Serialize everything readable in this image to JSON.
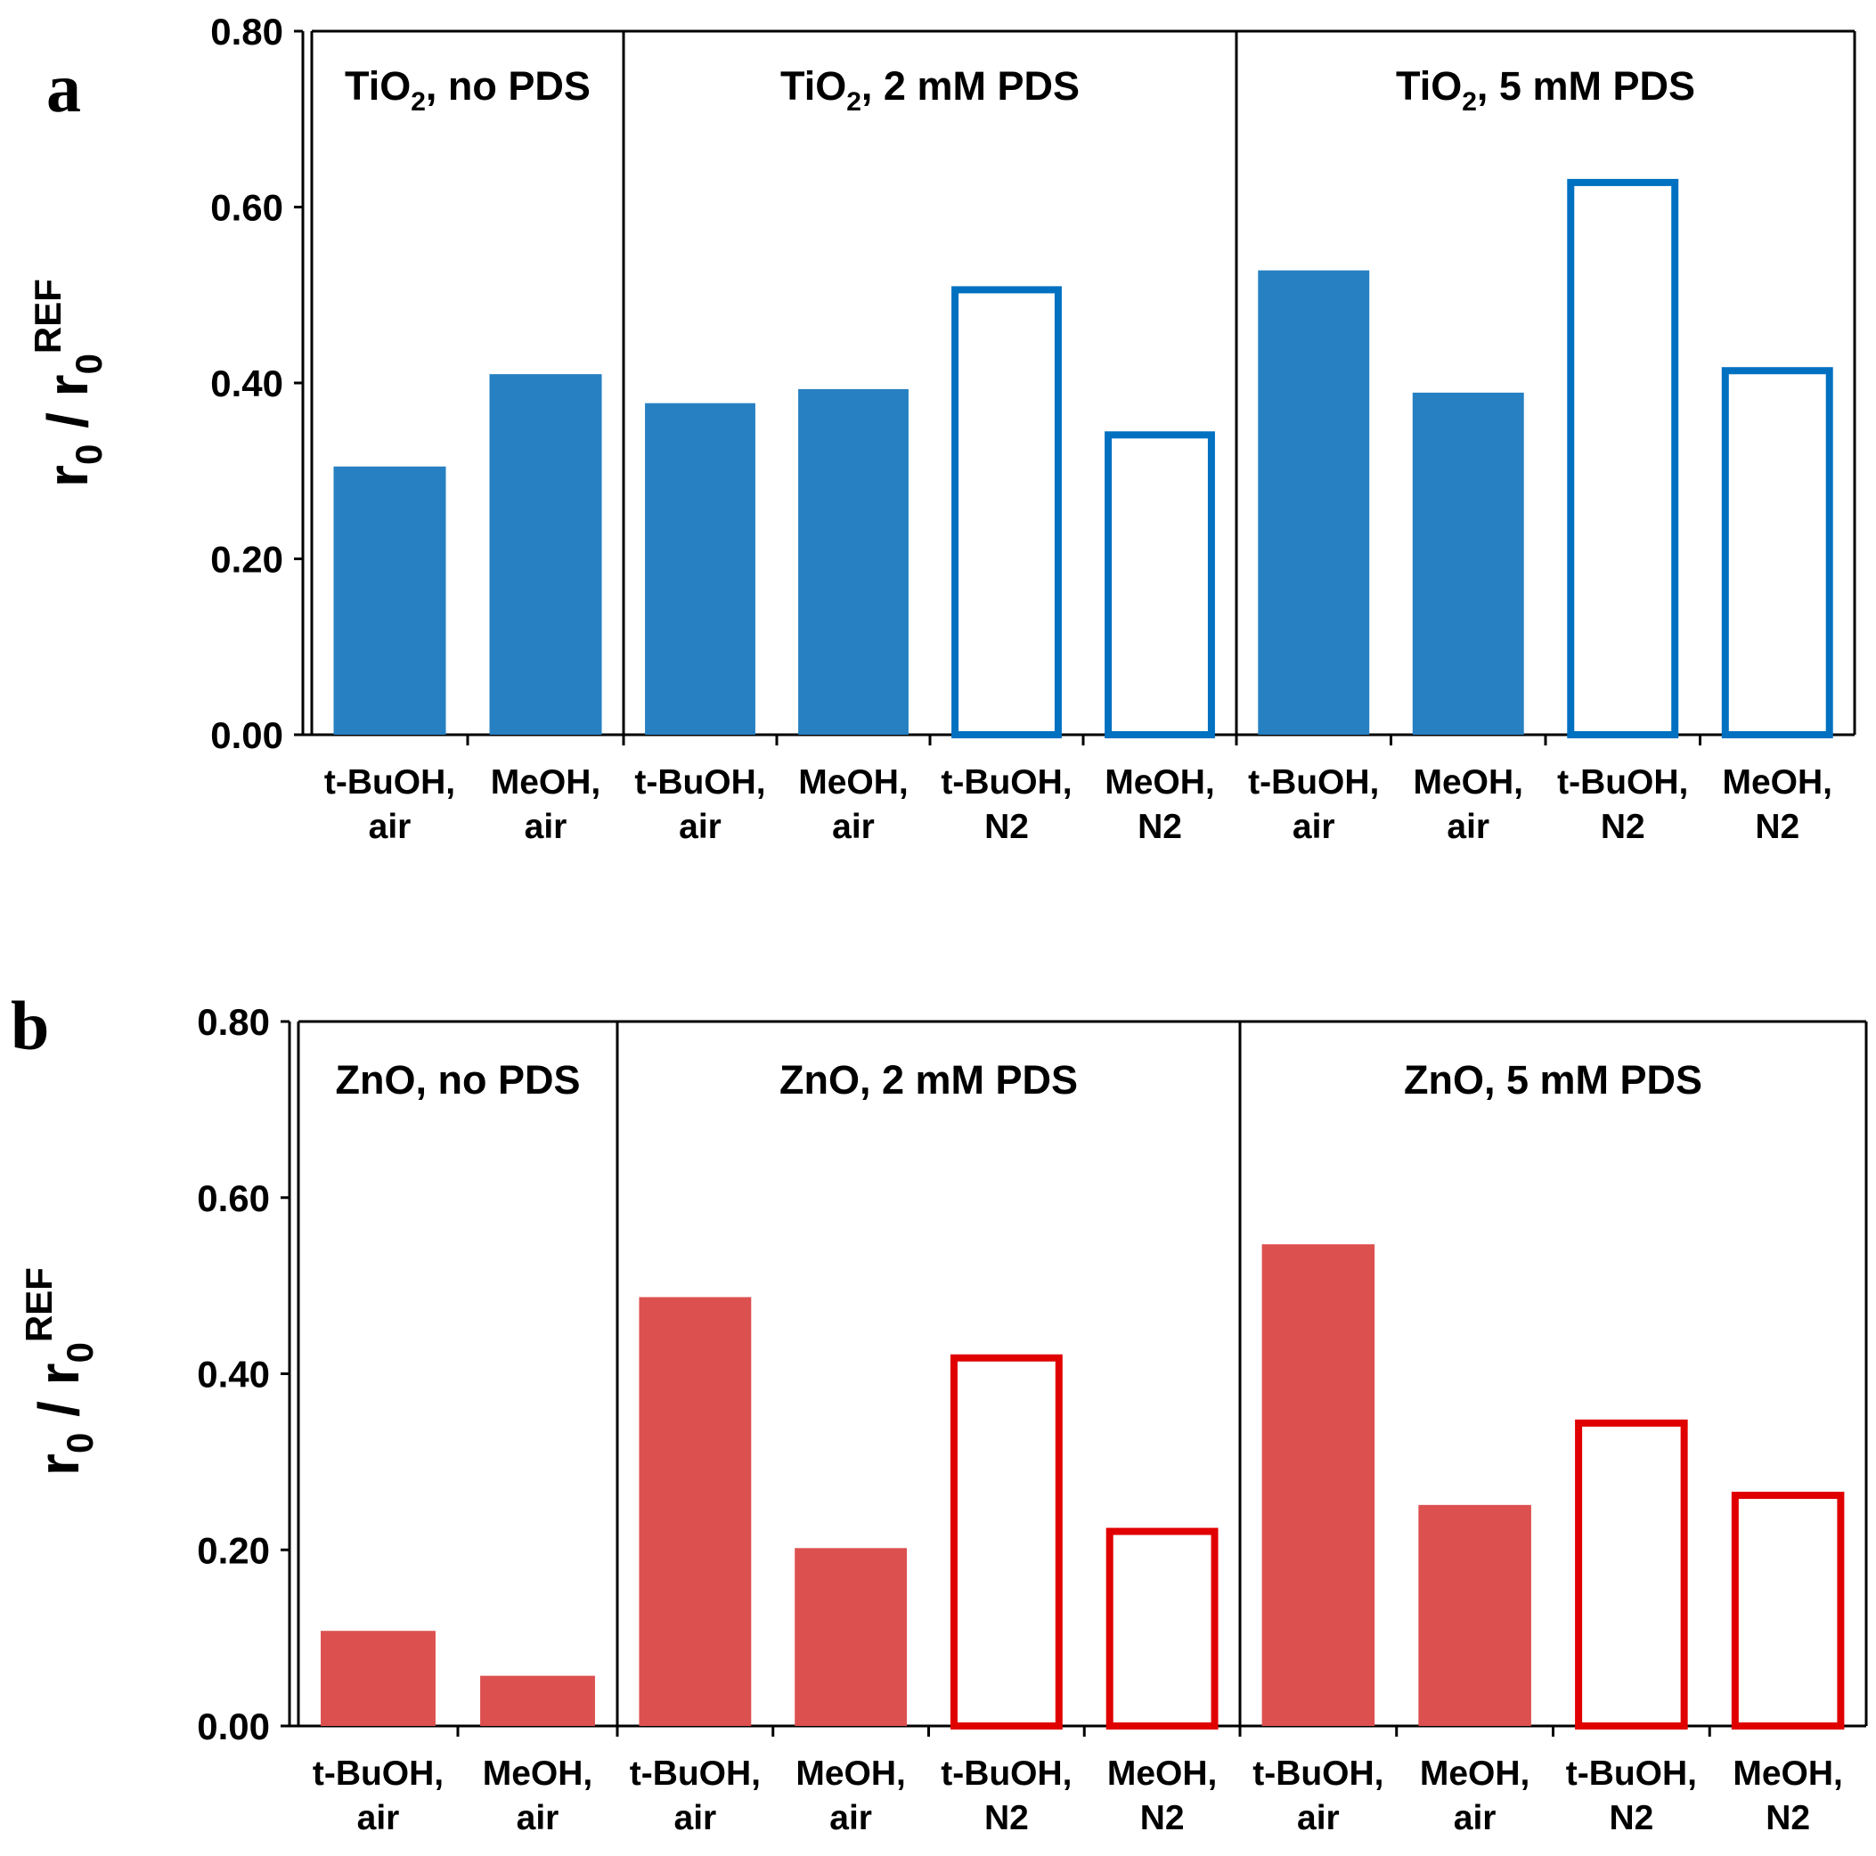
{
  "colors": {
    "tio2_fill": "#2680c2",
    "tio2_stroke": "#0070c0",
    "zno_fill": "#dd5050",
    "zno_stroke": "#e00000"
  },
  "chart_data": [
    {
      "type": "bar",
      "panel": "a",
      "ylabel": "r0 / r0REF",
      "ylabel_parts": [
        "r",
        "0",
        " / r",
        "0",
        "REF"
      ],
      "ylim": [
        0,
        0.8
      ],
      "yticks": [
        "0.00",
        "0.20",
        "0.40",
        "0.60",
        "0.80"
      ],
      "ytick_values": [
        0,
        0.2,
        0.4,
        0.6,
        0.8
      ],
      "groups": [
        {
          "title_parts": [
            "TiO",
            "2",
            ", no PDS"
          ],
          "start": 0,
          "count": 2
        },
        {
          "title_parts": [
            "TiO",
            "2",
            ", 2 mM PDS"
          ],
          "start": 2,
          "count": 4
        },
        {
          "title_parts": [
            "TiO",
            "2",
            ", 5 mM PDS"
          ],
          "start": 6,
          "count": 4
        }
      ],
      "categories": [
        [
          "t-BuOH,",
          "air"
        ],
        [
          "MeOH,",
          "air"
        ],
        [
          "t-BuOH,",
          "air"
        ],
        [
          "MeOH,",
          "air"
        ],
        [
          "t-BuOH,",
          "N2"
        ],
        [
          "MeOH,",
          "N2"
        ],
        [
          "t-BuOH,",
          "air"
        ],
        [
          "MeOH,",
          "air"
        ],
        [
          "t-BuOH,",
          "N2"
        ],
        [
          "MeOH,",
          "N2"
        ]
      ],
      "values": [
        0.305,
        0.41,
        0.377,
        0.393,
        0.51,
        0.345,
        0.528,
        0.389,
        0.632,
        0.418
      ],
      "bar_style": [
        "filled",
        "filled",
        "filled",
        "filled",
        "outline",
        "outline",
        "filled",
        "filled",
        "outline",
        "outline"
      ]
    },
    {
      "type": "bar",
      "panel": "b",
      "ylabel": "r0 / r0REF",
      "ylabel_parts": [
        "r",
        "0",
        " / r",
        "0",
        "REF"
      ],
      "ylim": [
        0,
        0.8
      ],
      "yticks": [
        "0.00",
        "0.20",
        "0.40",
        "0.60",
        "0.80"
      ],
      "ytick_values": [
        0,
        0.2,
        0.4,
        0.6,
        0.8
      ],
      "groups": [
        {
          "title_parts": [
            "ZnO, no PDS"
          ],
          "start": 0,
          "count": 2
        },
        {
          "title_parts": [
            "ZnO, 2 mM PDS"
          ],
          "start": 2,
          "count": 4
        },
        {
          "title_parts": [
            "ZnO, 5 mM PDS"
          ],
          "start": 6,
          "count": 4
        }
      ],
      "categories": [
        [
          "t-BuOH,",
          "air"
        ],
        [
          "MeOH,",
          "air"
        ],
        [
          "t-BuOH,",
          "air"
        ],
        [
          "MeOH,",
          "air"
        ],
        [
          "t-BuOH,",
          "N2"
        ],
        [
          "MeOH,",
          "N2"
        ],
        [
          "t-BuOH,",
          "air"
        ],
        [
          "MeOH,",
          "air"
        ],
        [
          "t-BuOH,",
          "N2"
        ],
        [
          "MeOH,",
          "N2"
        ]
      ],
      "values": [
        0.108,
        0.057,
        0.487,
        0.202,
        0.422,
        0.225,
        0.547,
        0.251,
        0.348,
        0.266
      ],
      "bar_style": [
        "filled",
        "filled",
        "filled",
        "filled",
        "outline",
        "outline",
        "filled",
        "filled",
        "outline",
        "outline"
      ]
    }
  ]
}
